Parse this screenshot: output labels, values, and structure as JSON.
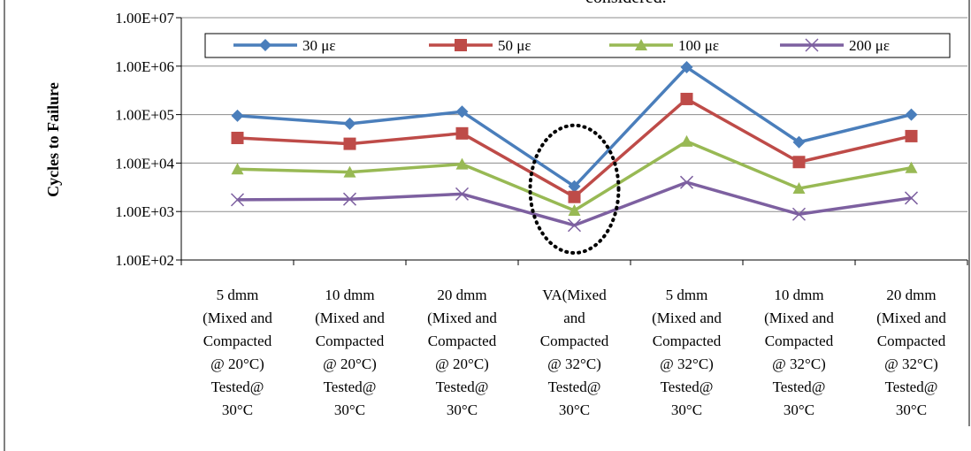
{
  "top_caption": "considered.",
  "chart_data": {
    "type": "line",
    "title": "",
    "xlabel": "",
    "ylabel": "Cycles to Failure",
    "y_scale": "log",
    "ylim": [
      100,
      10000000
    ],
    "y_ticks": [
      "1.00E+02",
      "1.00E+03",
      "1.00E+04",
      "1.00E+05",
      "1.00E+06",
      "1.00E+07"
    ],
    "grid": "horizontal",
    "legend_position": "top",
    "categories": [
      [
        "5 dmm",
        "(Mixed and",
        "Compacted",
        "@ 20°C)",
        "Tested@",
        "30°C"
      ],
      [
        "10 dmm",
        "(Mixed and",
        "Compacted",
        "@ 20°C)",
        "Tested@",
        "30°C"
      ],
      [
        "20 dmm",
        "(Mixed and",
        "Compacted",
        "@ 20°C)",
        "Tested@",
        "30°C"
      ],
      [
        "VA(Mixed",
        "and",
        "Compacted",
        "@ 32°C)",
        "Tested@",
        "30°C"
      ],
      [
        "5 dmm",
        "(Mixed and",
        "Compacted",
        "@ 32°C)",
        "Tested@",
        "30°C"
      ],
      [
        "10 dmm",
        "(Mixed and",
        "Compacted",
        "@ 32°C)",
        "Tested@",
        "30°C"
      ],
      [
        "20 dmm",
        "(Mixed and",
        "Compacted",
        "@ 32°C)",
        "Tested@",
        "30°C"
      ]
    ],
    "series": [
      {
        "name": "30 με",
        "color": "#4A7EBB",
        "marker": "diamond",
        "values": [
          95000,
          65000,
          115000,
          3300,
          950000,
          27000,
          100000
        ]
      },
      {
        "name": "50 με",
        "color": "#BE4B48",
        "marker": "square",
        "values": [
          33000,
          25000,
          41000,
          2000,
          210000,
          10500,
          36000
        ]
      },
      {
        "name": "100 με",
        "color": "#98B954",
        "marker": "triangle",
        "values": [
          7500,
          6500,
          9500,
          1050,
          28000,
          3000,
          8000
        ]
      },
      {
        "name": "200 με",
        "color": "#7D60A0",
        "marker": "x",
        "values": [
          1750,
          1800,
          2300,
          520,
          4000,
          880,
          1900
        ]
      }
    ],
    "annotation": {
      "shape": "dotted-ellipse",
      "category_index": 3,
      "y_range": [
        140,
        60000
      ],
      "color": "#000000"
    }
  }
}
